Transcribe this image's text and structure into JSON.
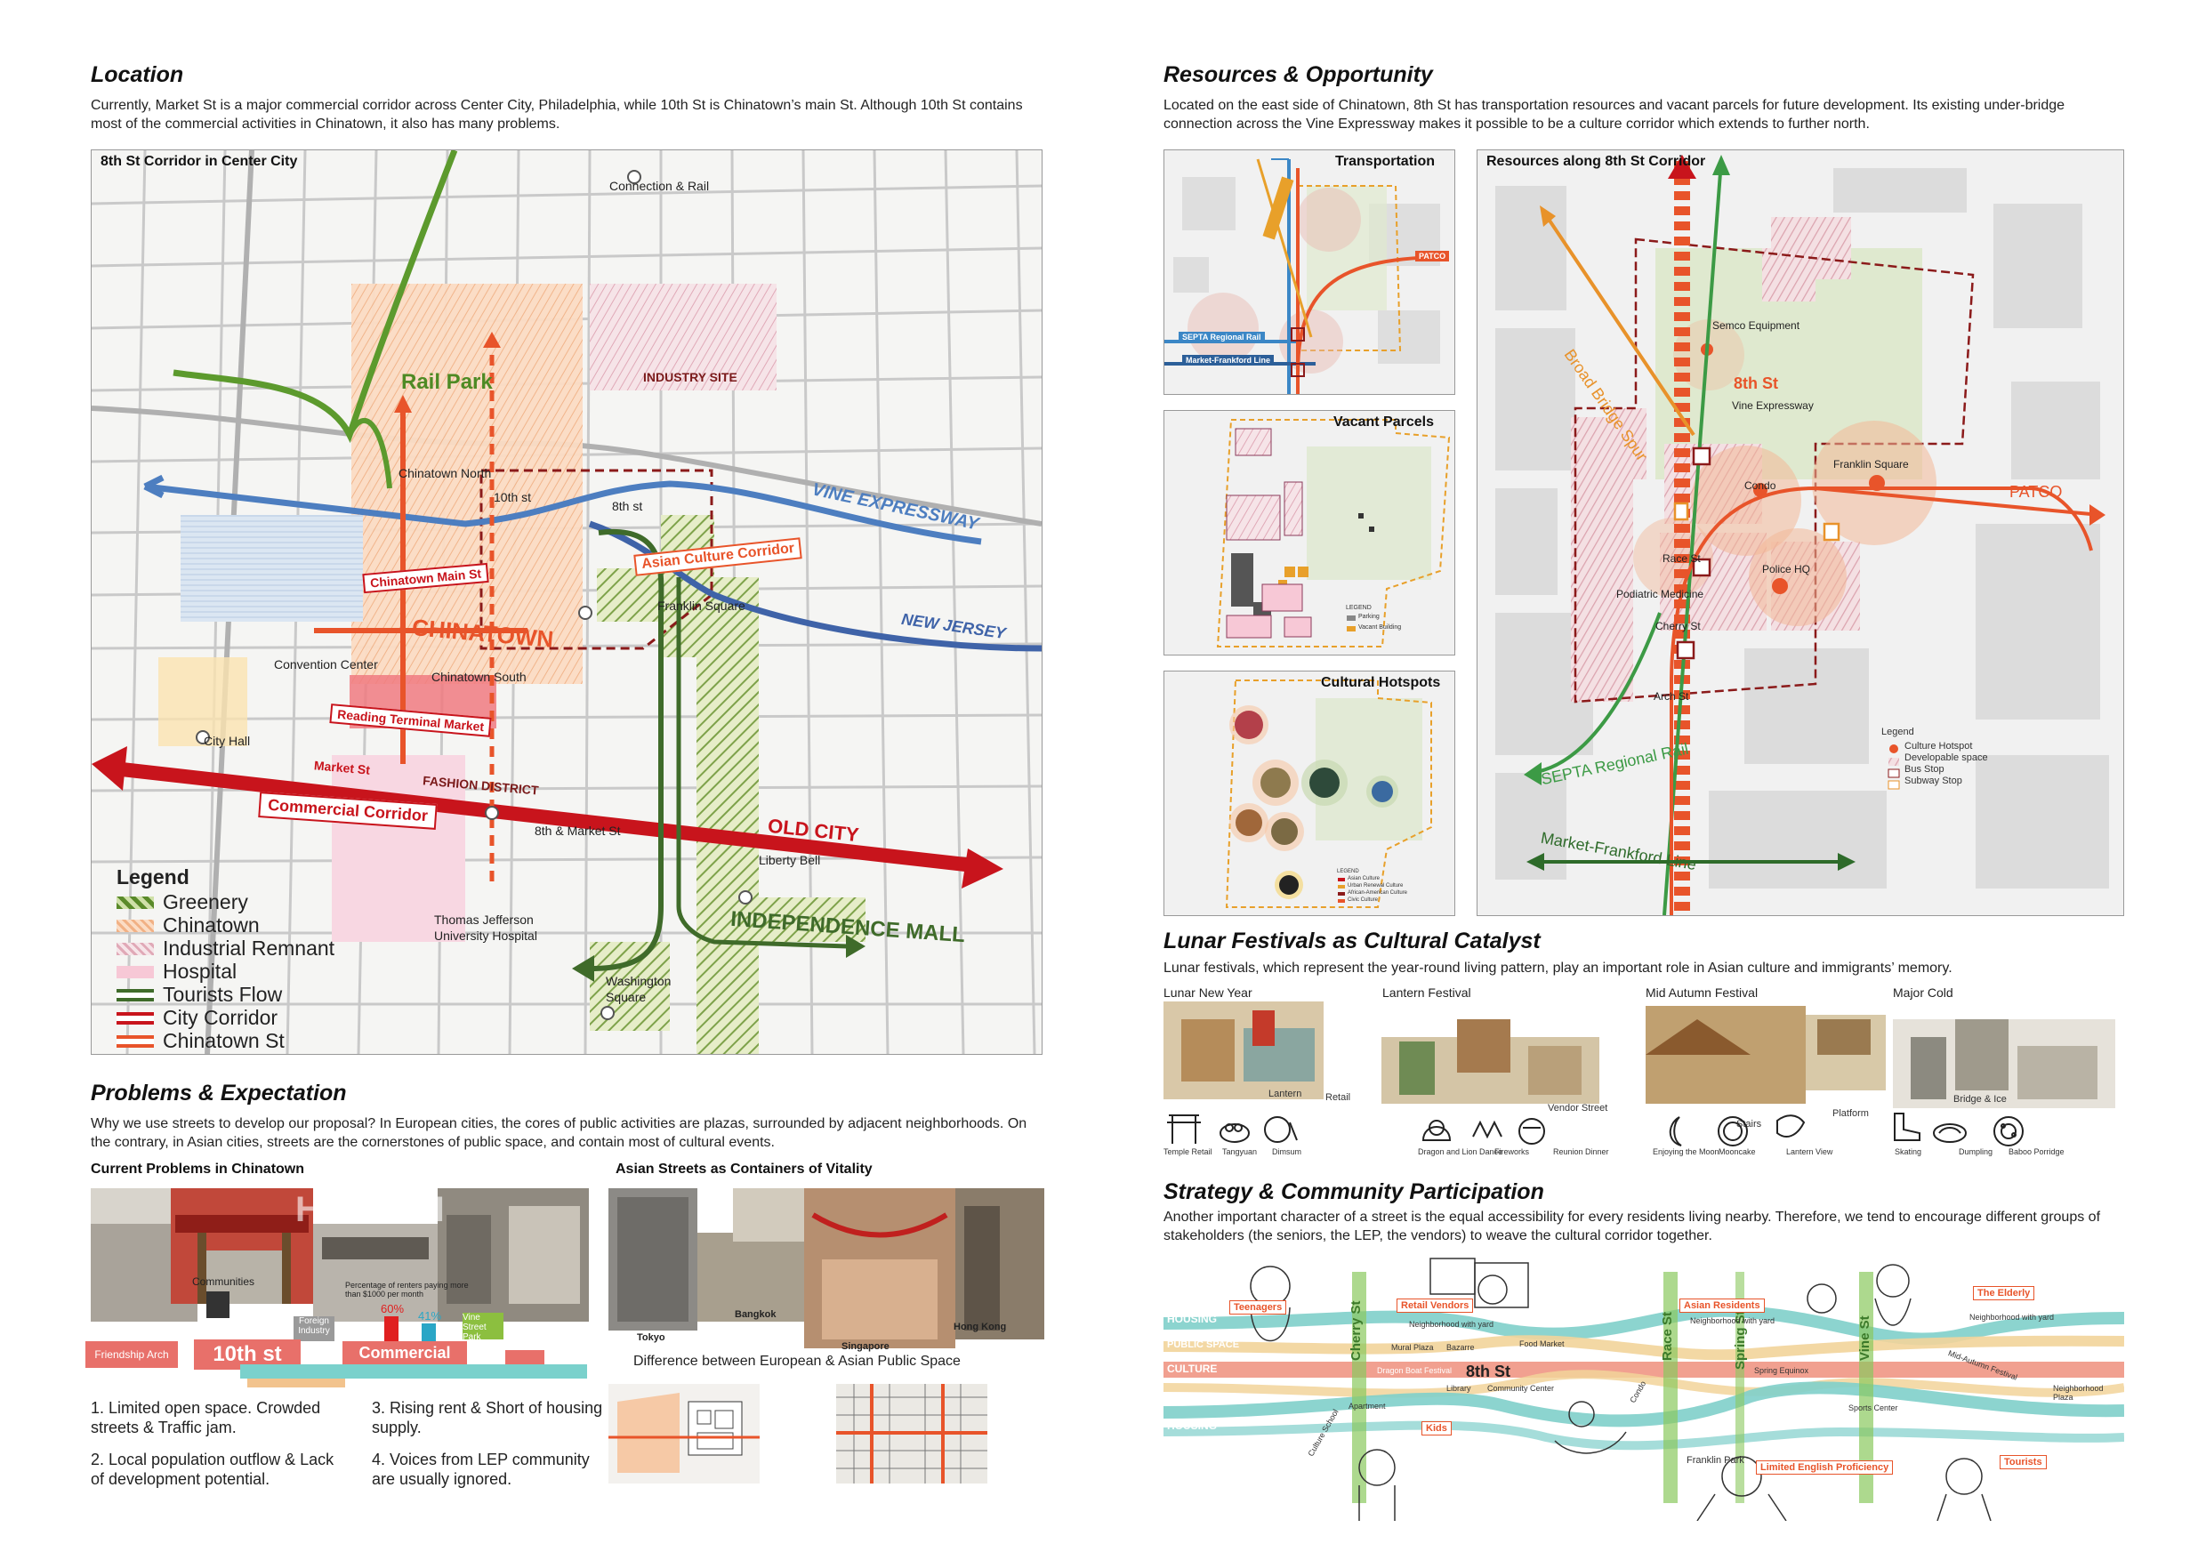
{
  "location": {
    "heading": "Location",
    "paragraph": "Currently, Market St is a major commercial corridor across Center City, Philadelphia, while 10th St is Chinatown’s main St. Although 10th St contains most of the commercial activities in Chinatown, it also has many problems.",
    "map_title": "8th St Corridor in Center City",
    "labels": {
      "connection_rail": "Connection & Rail",
      "rail_park": "Rail Park",
      "industry_site": "INDUSTRY SITE",
      "chinatown_north": "Chinatown North",
      "tenth_st": "10th st",
      "eighth_st": "8th st",
      "vine_expressway": "VINE EXPRESSWAY",
      "asian_culture_corridor": "Asian Culture Corridor",
      "chinatown_main_st": "Chinatown Main St",
      "franklin_square": "Franklin Square",
      "new_jersey": "NEW JERSEY",
      "chinatown": "CHINATOWN",
      "convention_center": "Convention Center",
      "chinatown_south": "Chinatown South",
      "reading_terminal": "Reading Terminal Market",
      "city_hall": "City Hall",
      "market_st": "Market St",
      "fashion_district": "FASHION DISTRICT",
      "commercial_corridor": "Commercial Corridor",
      "eighth_market": "8th & Market St",
      "old_city": "OLD CITY",
      "liberty_bell": "Liberty Bell",
      "thomas_jefferson": "Thomas Jefferson",
      "university_hospital": "University Hospital",
      "independence_mall": "INDEPENDENCE MALL",
      "washington": "Washington",
      "square": "Square"
    },
    "legend_title": "Legend",
    "legend": [
      {
        "label": "Greenery",
        "color": "#5a8a2a"
      },
      {
        "label": "Chinatown",
        "color": "#f6c8a6"
      },
      {
        "label": "Industrial Remnant",
        "color": "#e8b4bf"
      },
      {
        "label": "Hospital",
        "color": "#f7c8d6"
      },
      {
        "label": "Tourists Flow",
        "color": "#3f6b2a"
      },
      {
        "label": "City Corridor",
        "color": "#c8141c"
      },
      {
        "label": "Chinatown St",
        "color": "#e8542a"
      }
    ]
  },
  "problems": {
    "heading": "Problems & Expectation",
    "paragraph": "Why we use streets to develop our proposal? In European cities, the cores of public activities are plazas, surrounded by adjacent neighborhoods. On the contrary, in Asian cities, streets are the cornerstones of public space, and contain most of cultural events.",
    "current_title": "Current Problems in Chinatown",
    "asian_title": "Asian Streets as Containers of Vitality",
    "watermark": "HONGYI",
    "chart_labels": {
      "communities": "Communities",
      "percentage": "Percentage of renters paying more than $1000 per month",
      "pct60": "60%",
      "pct41": "41%",
      "foreign_industry": "Foreign Industry",
      "vine_street_park": "Vine Street Park",
      "friendship_arch": "Friendship Arch",
      "tenth_st": "10th st",
      "commercial": "Commercial"
    },
    "cities": {
      "tokyo": "Tokyo",
      "bangkok": "Bangkok",
      "singapore": "Singapore",
      "hong_kong": "Hong Kong"
    },
    "difference_title": "Difference between European & Asian Public Space",
    "list": [
      "1. Limited open space. Crowded streets & Traffic jam.",
      "2. Local population outflow & Lack of development potential.",
      "3. Rising rent & Short of housing supply.",
      "4. Voices from LEP community are usually ignored."
    ]
  },
  "resources": {
    "heading": "Resources & Opportunity",
    "paragraph": "Located on the east side of Chinatown, 8th St has transportation resources and vacant parcels for future development. Its existing under-bridge connection across the Vine Expressway makes it possible to be a culture corridor which extends to further north.",
    "transportation_title": "Transportation",
    "transport_labels": {
      "septa": "SEPTA Regional Rail",
      "mfl": "Market-Frankford Line",
      "patco": "PATCO"
    },
    "vacant_title": "Vacant Parcels",
    "vacant_legend": {
      "title": "LEGEND",
      "parking": "Parking",
      "vacant": "Vacant Building"
    },
    "hotspots_title": "Cultural Hotspots",
    "hotspot_legend": {
      "title": "LEGEND",
      "a": "Asian Culture",
      "b": "Urban Renewal Culture",
      "c": "African-American Culture",
      "d": "Civic Culture"
    },
    "corridor_title": "Resources along 8th St Corridor",
    "corridor_labels": {
      "semco": "Semco Equipment",
      "bridge_spur": "Broad Bridge Spur",
      "eighth_st": "8th St",
      "vine_expressway": "Vine Expressway",
      "franklin_square": "Franklin Square",
      "condo": "Condo",
      "patco": "PATCO",
      "race_st": "Race St",
      "podiatric": "Podiatric Medicine",
      "police": "Police HQ",
      "cherry_st": "Cherry St",
      "arch_st": "Arch St",
      "septa": "SEPTA Regional Rail",
      "mfl": "Market-Frankford Line"
    },
    "corridor_legend": {
      "title": "Legend",
      "hotspot": "Culture Hotspot",
      "developable": "Developable space",
      "bus": "Bus Stop",
      "subway": "Subway Stop"
    }
  },
  "lunar": {
    "heading": "Lunar Festivals as Cultural Catalyst",
    "paragraph": "Lunar festivals, which represent the year-round living pattern, play an important role in Asian culture and immigrants’ memory.",
    "festivals": [
      {
        "name": "Lunar New Year",
        "tags": [
          "Lantern",
          "Retail"
        ],
        "icons": [
          "Temple Retail",
          "Tangyuan",
          "Dimsum"
        ]
      },
      {
        "name": "Lantern Festival",
        "tags": [
          "Vendor Street"
        ],
        "icons": [
          "Dragon and Lion Dance",
          "Fireworks",
          "Reunion Dinner"
        ]
      },
      {
        "name": "Mid Autumn Festival",
        "tags": [
          "Stairs",
          "Platform"
        ],
        "icons": [
          "Enjoying the Moon",
          "Mooncake",
          "Lantern View"
        ]
      },
      {
        "name": "Major Cold",
        "tags": [
          "Bridge & Ice"
        ],
        "icons": [
          "Skating",
          "Dumpling",
          "Baboo Porridge"
        ]
      }
    ]
  },
  "strategy": {
    "heading": "Strategy & Community Participation",
    "paragraph": "Another important character of a street is the equal accessibility for every residents living nearby. Therefore, we tend to encourage different groups of stakeholders (the seniors, the LEP, the vendors) to weave the cultural corridor together.",
    "bands": [
      "HOUSING",
      "PUBLIC SPACE",
      "CULTURE",
      "HOUSING"
    ],
    "streets": [
      "Cherry St",
      "8th St",
      "Race St",
      "Spring St",
      "Vine St"
    ],
    "tags": [
      "Teenagers",
      "Retail Vendors",
      "Asian Residents",
      "The Elderly",
      "Kids",
      "Limited English Proficiency",
      "Tourists"
    ],
    "small_labels": [
      "Neighborhood with yard",
      "Mural Plaza",
      "Bazarre",
      "Food Market",
      "Dragon Boat Festival",
      "Library",
      "Community Center",
      "Apartment",
      "Culture School",
      "Neighborhood with yard",
      "Spring Equinox",
      "Sports Center",
      "Mid-Autumn Festival",
      "Neighborhood Plaza",
      "Franklin Park",
      "Condo",
      "Neighborhood with yard"
    ]
  }
}
